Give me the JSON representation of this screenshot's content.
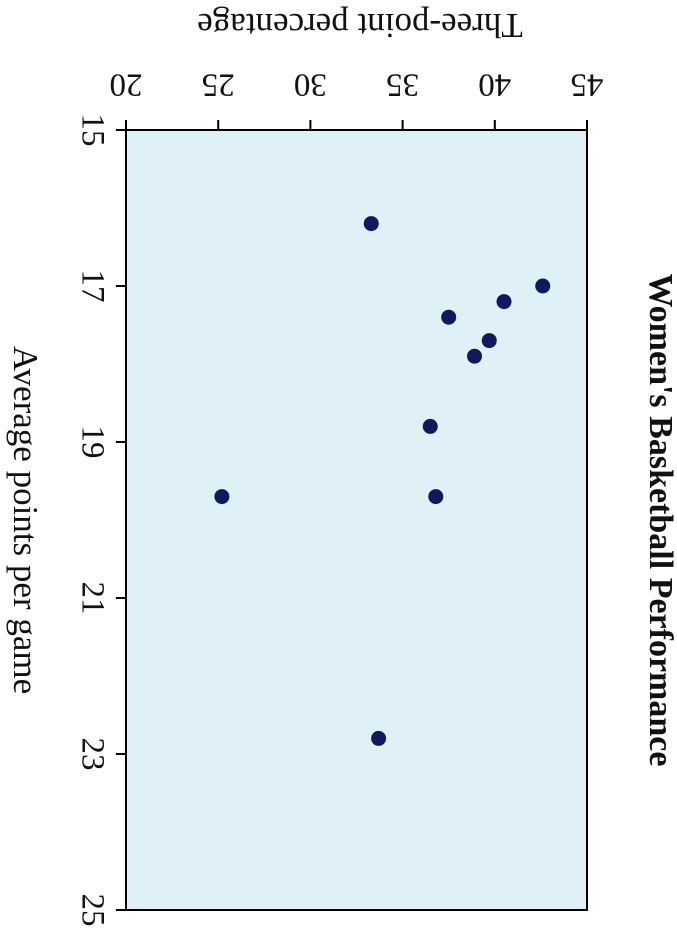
{
  "chart_data": {
    "type": "scatter",
    "title": "Women's Basketball Performance",
    "xlabel": "Average points per game",
    "ylabel": "Three-point percentage",
    "xlim": [
      15,
      25
    ],
    "ylim": [
      20,
      45
    ],
    "xticks": [
      "15",
      "17",
      "19",
      "21",
      "23",
      "25"
    ],
    "yticks": [
      "20",
      "25",
      "30",
      "35",
      "40",
      "45"
    ],
    "grid": false,
    "series": [
      {
        "points": [
          {
            "x": 16.2,
            "y": 33.3
          },
          {
            "x": 17.0,
            "y": 42.6
          },
          {
            "x": 17.2,
            "y": 40.5
          },
          {
            "x": 17.4,
            "y": 37.5
          },
          {
            "x": 17.7,
            "y": 39.7
          },
          {
            "x": 17.9,
            "y": 38.9
          },
          {
            "x": 18.8,
            "y": 36.5
          },
          {
            "x": 19.7,
            "y": 25.2
          },
          {
            "x": 19.7,
            "y": 36.8
          },
          {
            "x": 22.8,
            "y": 33.7
          }
        ]
      }
    ],
    "colors": {
      "plot_background": "#dff0f6",
      "marker": "#0f1a5e",
      "axis": "#000000"
    }
  }
}
